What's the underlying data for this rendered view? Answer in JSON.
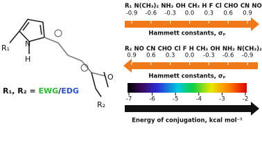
{
  "molecule": {
    "r1": "R₁",
    "n": "N",
    "h": "H",
    "o": "O",
    "r2": "R₂",
    "substituent_note": {
      "prefix": "R₁, R₂ = ",
      "ewg": "EWG",
      "slash": "/",
      "edg": "EDG"
    }
  },
  "scales": [
    {
      "substituents": [
        "R₁",
        "N(CH₃)₂",
        "NH₂",
        "OH",
        "CH₃",
        "H",
        "F",
        "Cl",
        "CHO",
        "CN",
        "NO"
      ],
      "ticks": [
        "-0.9",
        "-0.6",
        "-0.3",
        "0.0",
        "0.3",
        "0.6",
        "0.9"
      ],
      "axis_label": "Hammett constants, σₚ"
    },
    {
      "substituents": [
        "R₂",
        "NO",
        "CN",
        "CHO",
        "Cl",
        "F",
        "H",
        "CH₃",
        "OH",
        "NH₂",
        "N(CH₃)₂"
      ],
      "ticks": [
        "0.9",
        "0.6",
        "0.3",
        "0.0",
        "-0.3",
        "-0.6",
        "-0.9"
      ],
      "axis_label": "Hammett constants, σₚ"
    },
    {
      "ticks": [
        "-7",
        "-6",
        "-5",
        "-4",
        "-3",
        "-2"
      ],
      "axis_label": "Energy of conjugation, kcal mol⁻¹"
    }
  ]
}
